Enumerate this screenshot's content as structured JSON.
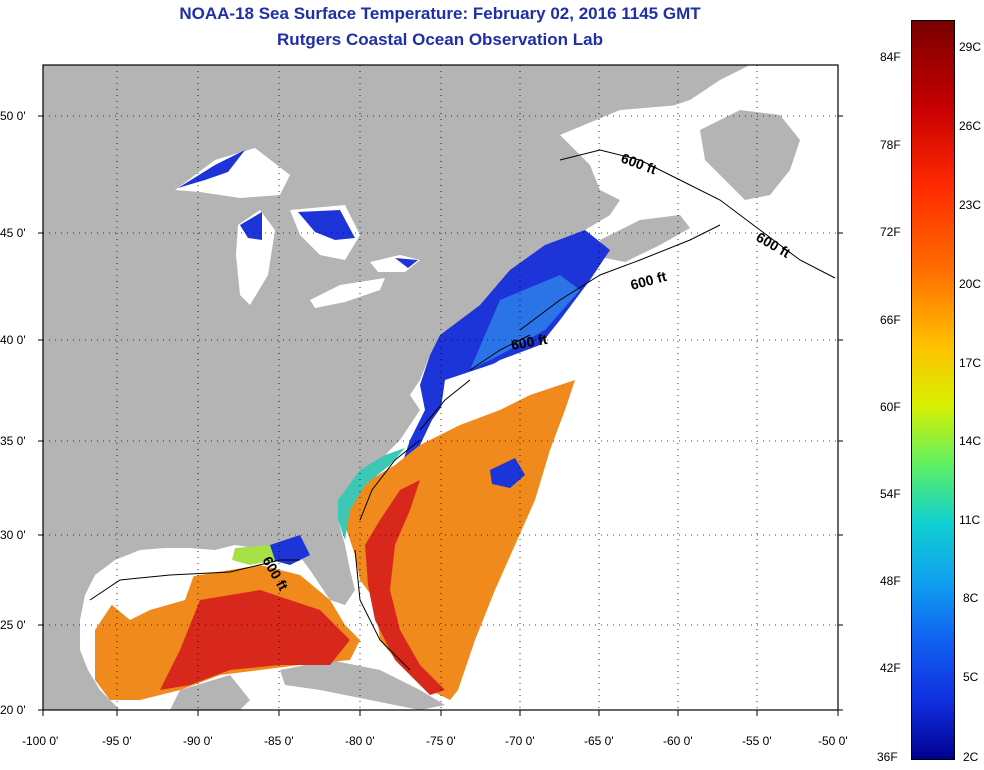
{
  "title": "NOAA-18 Sea Surface Temperature:  February 02, 2016 1145 GMT",
  "subtitle": "Rutgers Coastal Ocean Observation Lab",
  "map": {
    "lon_ticks": [
      "-100 0'",
      "-95 0'",
      "-90 0'",
      "-85 0'",
      "-80 0'",
      "-75 0'",
      "-70 0'",
      "-65 0'",
      "-60 0'",
      "-55 0'",
      "-50 0'"
    ],
    "lat_ticks": [
      "50 0'",
      "45 0'",
      "40 0'",
      "35 0'",
      "30 0'",
      "25 0'",
      "20 0'"
    ],
    "isobath_label": "600 ft",
    "colors": {
      "land": "#b4b4b4",
      "cloud": "#ffffff",
      "cold": "#1c34d8",
      "warm": "#f08a1c",
      "hot": "#d8281c"
    }
  },
  "colorbar": {
    "fahrenheit": [
      "84F",
      "78F",
      "72F",
      "66F",
      "60F",
      "54F",
      "48F",
      "42F",
      "36F"
    ],
    "celsius": [
      "29C",
      "26C",
      "23C",
      "20C",
      "17C",
      "14C",
      "11C",
      "8C",
      "5C",
      "2C"
    ]
  }
}
